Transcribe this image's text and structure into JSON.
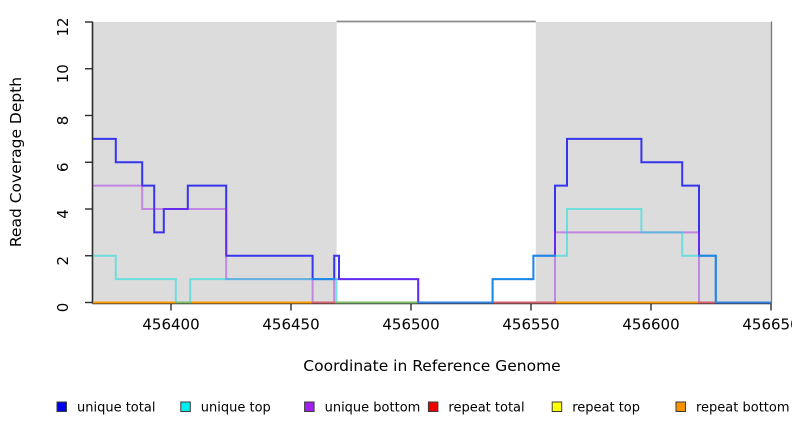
{
  "chart_data": {
    "type": "line",
    "subtype": "step",
    "title": "",
    "xlabel": "Coordinate in Reference Genome",
    "ylabel": "Read Coverage Depth",
    "xlim": [
      456367.5,
      456650
    ],
    "ylim": [
      0,
      12
    ],
    "x_ticks": [
      456400,
      456450,
      456500,
      456550,
      456600,
      456650
    ],
    "y_ticks": [
      0,
      2,
      4,
      6,
      8,
      10,
      12
    ],
    "grid": "off",
    "legend_position": "bottom",
    "shaded_color": "#DCDCDC",
    "shaded_regions": [
      {
        "x1": 456367.5,
        "x2": 456469
      },
      {
        "x1": 456552,
        "x2": 456650
      }
    ],
    "gap_top_line": {
      "x1": 456469,
      "x2": 456552,
      "color": "#8C8C8C"
    },
    "series": [
      {
        "name": "repeat total",
        "color": "#DD1111",
        "opacity": 0.85,
        "steps": [
          [
            456368,
            0
          ]
        ]
      },
      {
        "name": "repeat top",
        "color": "#EEEE00",
        "opacity": 0.9,
        "steps": [
          [
            456368,
            0
          ]
        ]
      },
      {
        "name": "repeat bottom",
        "color": "#FF9900",
        "opacity": 1,
        "steps": [
          [
            456368,
            0
          ]
        ]
      },
      {
        "name": "unique total",
        "color": "#2222EE",
        "opacity": 0.9,
        "steps": [
          [
            456368,
            7
          ],
          [
            456377,
            6
          ],
          [
            456388,
            5
          ],
          [
            456393,
            3
          ],
          [
            456397,
            4
          ],
          [
            456407,
            5
          ],
          [
            456423,
            2
          ],
          [
            456459,
            1
          ],
          [
            456468,
            2
          ],
          [
            456470,
            1
          ],
          [
            456503,
            0
          ],
          [
            456534,
            1
          ],
          [
            456551,
            2
          ],
          [
            456560,
            5
          ],
          [
            456565,
            7
          ],
          [
            456596,
            6
          ],
          [
            456613,
            5
          ],
          [
            456620,
            2
          ],
          [
            456627,
            0
          ]
        ]
      },
      {
        "name": "unique bottom",
        "color": "#A020F0",
        "opacity": 0.45,
        "steps": [
          [
            456368,
            5
          ],
          [
            456388,
            4
          ],
          [
            456423,
            1
          ],
          [
            456459,
            0
          ],
          [
            456468,
            1
          ],
          [
            456503,
            0
          ],
          [
            456560,
            3
          ],
          [
            456620,
            0
          ]
        ]
      },
      {
        "name": "unique top",
        "color": "#00DDDD",
        "opacity": 0.5,
        "steps": [
          [
            456368,
            2
          ],
          [
            456377,
            1
          ],
          [
            456402,
            0
          ],
          [
            456408,
            1
          ],
          [
            456469,
            0
          ],
          [
            456534,
            1
          ],
          [
            456551,
            2
          ],
          [
            456565,
            4
          ],
          [
            456596,
            3
          ],
          [
            456613,
            2
          ],
          [
            456627,
            0
          ]
        ]
      }
    ]
  },
  "legend": {
    "items": [
      {
        "label": "unique total",
        "color": "#0000EE"
      },
      {
        "label": "unique top",
        "color": "#00EEEE"
      },
      {
        "label": "unique bottom",
        "color": "#A020F0"
      },
      {
        "label": "repeat total",
        "color": "#EE0000"
      },
      {
        "label": "repeat top",
        "color": "#FFFF00"
      },
      {
        "label": "repeat bottom",
        "color": "#F59300"
      }
    ]
  }
}
